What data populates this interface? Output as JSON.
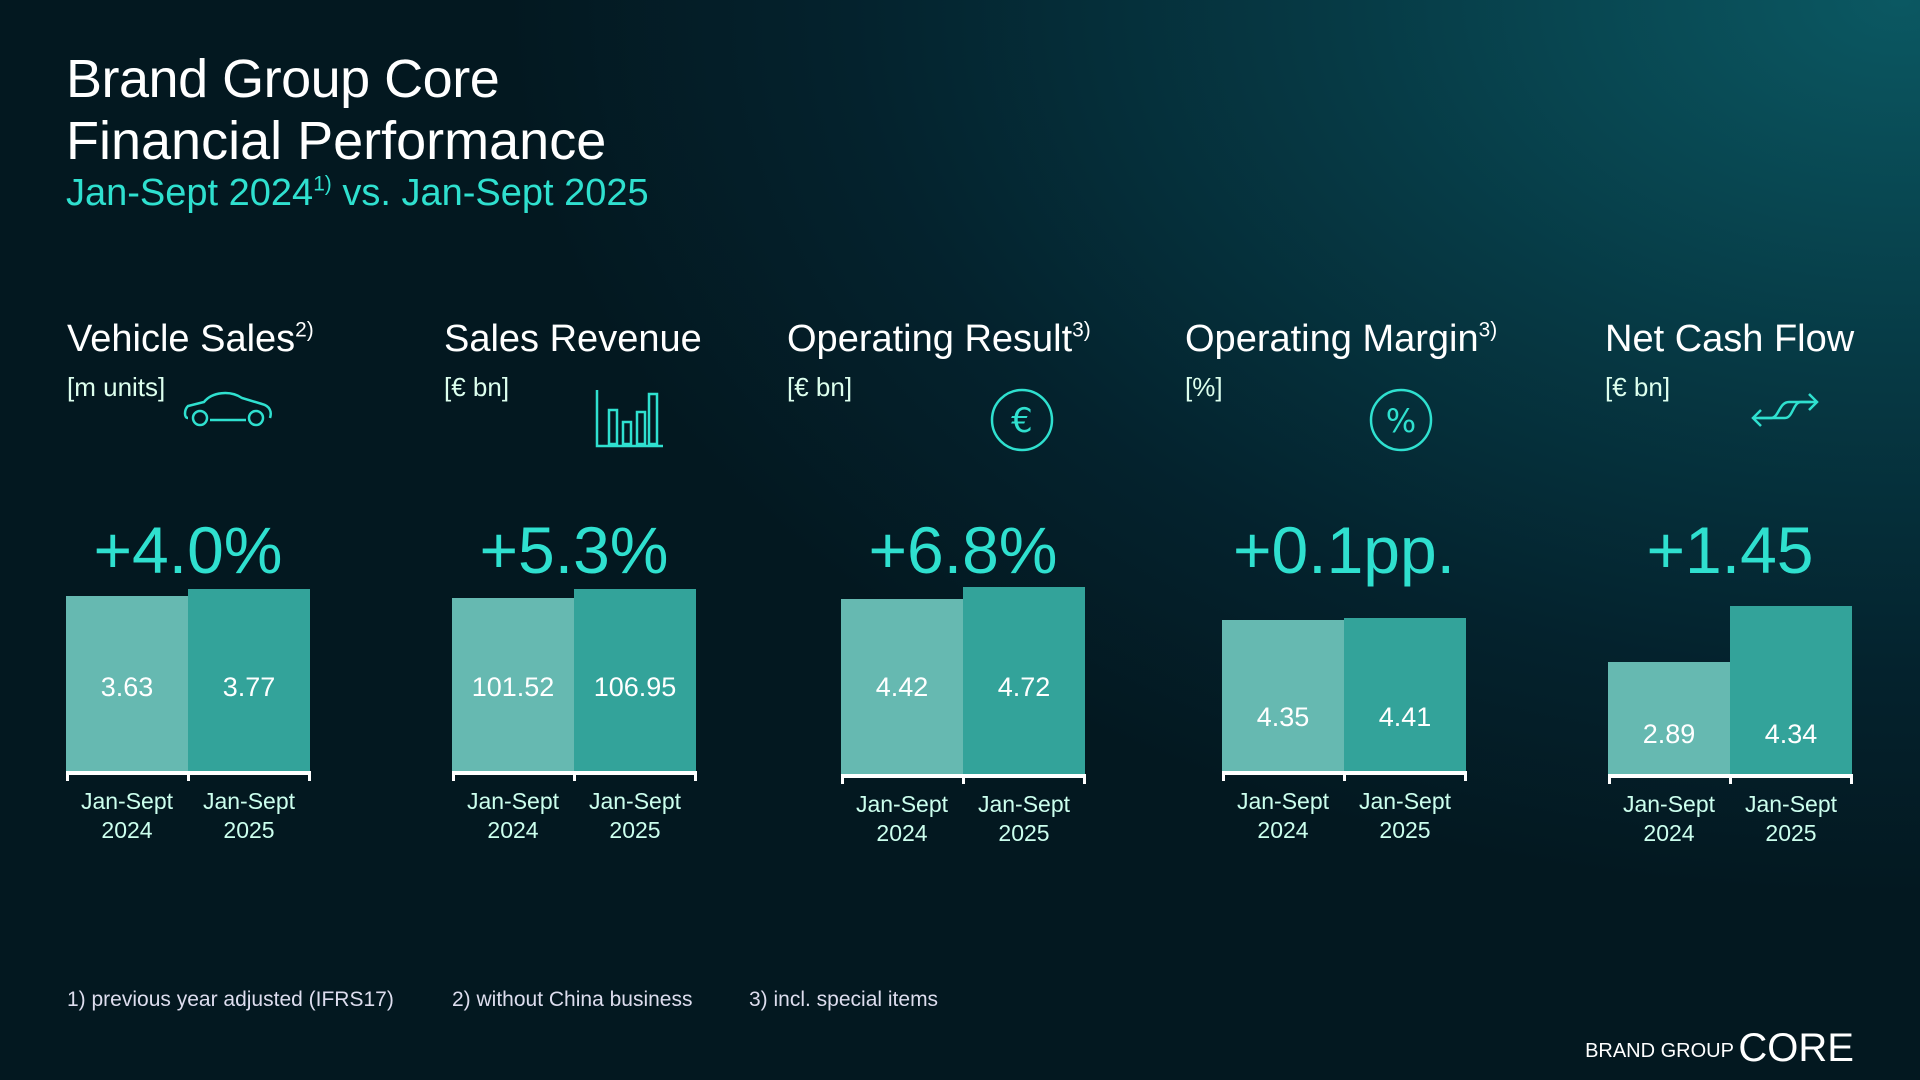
{
  "header": {
    "title": "Brand Group Core",
    "subtitle": "Financial Performance",
    "period_a": "Jan-Sept 2024",
    "period_a_sup": "1)",
    "period_b": " vs. Jan-Sept 2025"
  },
  "colors": {
    "accent": "#2fe0cf",
    "bar_2024": "#66b9b1",
    "bar_2025": "#33a39a"
  },
  "chart_data": [
    {
      "type": "bar",
      "title": "Vehicle Sales",
      "title_sup": "2)",
      "unit": "[m units]",
      "icon": "car-icon",
      "change": "+4.0%",
      "categories": [
        "Jan-Sept 2024",
        "Jan-Sept 2025"
      ],
      "values": [
        3.63,
        3.77
      ],
      "labels": [
        "3.63",
        "3.77"
      ]
    },
    {
      "type": "bar",
      "title": "Sales Revenue",
      "title_sup": "",
      "unit": "[€ bn]",
      "icon": "bar-chart-icon",
      "change": "+5.3%",
      "categories": [
        "Jan-Sept 2024",
        "Jan-Sept 2025"
      ],
      "values": [
        101.52,
        106.95
      ],
      "labels": [
        "101.52",
        "106.95"
      ]
    },
    {
      "type": "bar",
      "title": "Operating Result",
      "title_sup": "3)",
      "unit": "[€ bn]",
      "icon": "euro-icon",
      "change": "+6.8%",
      "categories": [
        "Jan-Sept 2024",
        "Jan-Sept 2025"
      ],
      "values": [
        4.42,
        4.72
      ],
      "labels": [
        "4.42",
        "4.72"
      ]
    },
    {
      "type": "bar",
      "title": "Operating Margin",
      "title_sup": "3)",
      "unit": "[%]",
      "icon": "percent-icon",
      "change": "+0.1pp.",
      "categories": [
        "Jan-Sept 2024",
        "Jan-Sept 2025"
      ],
      "values": [
        4.35,
        4.41
      ],
      "labels": [
        "4.35",
        "4.41"
      ]
    },
    {
      "type": "bar",
      "title": "Net Cash Flow",
      "title_sup": "",
      "unit": "[€ bn]",
      "icon": "cash-flow-arrows-icon",
      "change": "+1.45",
      "categories": [
        "Jan-Sept 2024",
        "Jan-Sept 2025"
      ],
      "values": [
        2.89,
        4.34
      ],
      "labels": [
        "2.89",
        "4.34"
      ]
    }
  ],
  "xlabels": {
    "a1": "Jan-Sept",
    "a2": "2024",
    "b1": "Jan-Sept",
    "b2": "2025"
  },
  "footnotes": [
    "1) previous year adjusted (IFRS17)",
    "2) without China business",
    "3) incl. special items"
  ],
  "logo": {
    "small": "BRAND GROUP",
    "large": "CORE"
  }
}
